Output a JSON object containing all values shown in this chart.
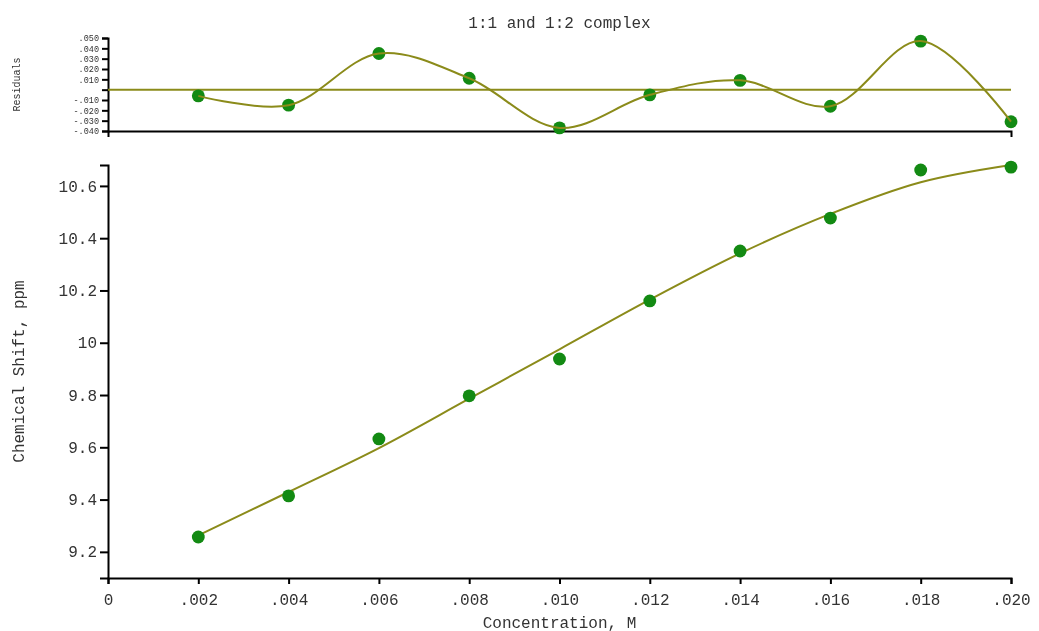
{
  "chart_data": [
    {
      "type": "scatter",
      "title": "1:1 and 1:2 complex",
      "ylabel": "Residuals",
      "tick_labels": "y",
      "marker": "circle",
      "x": [
        0.002,
        0.004,
        0.006,
        0.008,
        0.01,
        0.012,
        0.014,
        0.016,
        0.018,
        0.02
      ],
      "series": [
        {
          "color": "#138a13",
          "values": [
            -0.006,
            -0.015,
            0.035,
            0.011,
            -0.037,
            -0.005,
            0.009,
            -0.016,
            0.047,
            -0.031
          ]
        },
        {
          "type": "line",
          "color": "#8b8b1a",
          "marker": "none",
          "values": [
            -0.006,
            -0.015,
            0.035,
            0.011,
            -0.037,
            -0.005,
            0.009,
            -0.016,
            0.047,
            -0.031
          ]
        }
      ],
      "ref_lines": [
        {
          "axis": "y",
          "value": 0,
          "color": "#8b8b1a"
        }
      ],
      "xlim": [
        0,
        0.02
      ],
      "ylim": [
        -0.04,
        0.05
      ],
      "yticks": [
        {
          "value": 0.05,
          "label": ".050"
        },
        {
          "value": 0.04,
          "label": ".040"
        },
        {
          "value": 0.03,
          "label": ".030"
        },
        {
          "value": 0.02,
          "label": ".020"
        },
        {
          "value": 0.01,
          "label": ".010"
        },
        {
          "value": 0,
          "label": null
        },
        {
          "value": -0.01,
          "label": "-.010"
        },
        {
          "value": -0.02,
          "label": "-.020"
        },
        {
          "value": -0.03,
          "label": "-.030"
        },
        {
          "value": -0.04,
          "label": "-.040"
        }
      ]
    },
    {
      "type": "scatter",
      "xlabel": "Concentration, M",
      "ylabel": "Chemical Shift, ppm",
      "marker": "circle",
      "x": [
        0.002,
        0.004,
        0.006,
        0.008,
        0.01,
        0.012,
        0.014,
        0.016,
        0.018,
        0.02
      ],
      "series": [
        {
          "type": "line",
          "color": "#8b8b1a",
          "marker": "none",
          "values": [
            9.263,
            9.429,
            9.597,
            9.786,
            9.975,
            10.165,
            10.342,
            10.493,
            10.614,
            10.68
          ]
        },
        {
          "color": "#138a13",
          "values": [
            9.257,
            9.414,
            9.632,
            9.797,
            9.938,
            10.16,
            10.351,
            10.477,
            10.661,
            10.672
          ]
        }
      ],
      "xlim": [
        0,
        0.02
      ],
      "xticks": [
        0,
        {
          "value": 0.002,
          "label": ".002"
        },
        {
          "value": 0.004,
          "label": ".004"
        },
        {
          "value": 0.006,
          "label": ".006"
        },
        {
          "value": 0.008,
          "label": ".008"
        },
        {
          "value": 0.01,
          "label": ".010"
        },
        {
          "value": 0.012,
          "label": ".012"
        },
        {
          "value": 0.014,
          "label": ".014"
        },
        {
          "value": 0.016,
          "label": ".016"
        },
        {
          "value": 0.018,
          "label": ".018"
        },
        {
          "value": 0.02,
          "label": ".020"
        }
      ],
      "ylim": [
        9.1,
        10.68
      ],
      "yticks": [
        9.2,
        9.4,
        9.6,
        9.8,
        10,
        10.2,
        10.4,
        10.6
      ]
    }
  ]
}
